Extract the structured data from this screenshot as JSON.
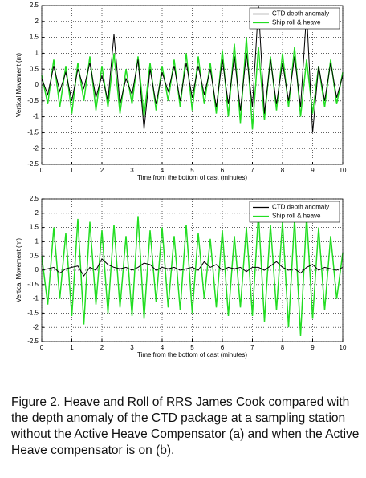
{
  "chart_data": [
    {
      "type": "line",
      "ylabel": "Vertical Movement (m)",
      "xlabel": "Time from the bottom of cast (minutes)",
      "xlim": [
        0,
        10
      ],
      "xticks": [
        0,
        1,
        2,
        3,
        4,
        5,
        6,
        7,
        8,
        9,
        10
      ],
      "ylim": [
        -2.5,
        2.5
      ],
      "yticks": [
        -2.5,
        -2,
        -1.5,
        -1,
        -0.5,
        0,
        0.5,
        1,
        1.5,
        2,
        2.5
      ],
      "grid": true,
      "legend": "upper right",
      "x": [
        0,
        0.2,
        0.4,
        0.6,
        0.8,
        1,
        1.2,
        1.4,
        1.6,
        1.8,
        2,
        2.2,
        2.4,
        2.6,
        2.8,
        3,
        3.2,
        3.4,
        3.6,
        3.8,
        4,
        4.2,
        4.4,
        4.6,
        4.8,
        5,
        5.2,
        5.4,
        5.6,
        5.8,
        6,
        6.2,
        6.4,
        6.6,
        6.8,
        7,
        7.2,
        7.4,
        7.6,
        7.8,
        8,
        8.2,
        8.4,
        8.6,
        8.8,
        9,
        9.2,
        9.4,
        9.6,
        9.8,
        10
      ],
      "series": [
        {
          "name": "CTD depth anomaly",
          "color": "#000000",
          "values": [
            0.2,
            -0.3,
            0.6,
            -0.2,
            0.4,
            -0.5,
            0.5,
            -0.1,
            0.7,
            -0.4,
            0.3,
            -0.5,
            1.6,
            -0.6,
            0.2,
            -0.3,
            0.8,
            -1.4,
            0.5,
            -0.6,
            0.4,
            -0.2,
            0.6,
            -0.5,
            0.7,
            -0.4,
            0.6,
            -0.3,
            0.5,
            -0.7,
            0.8,
            -0.6,
            0.9,
            -0.8,
            1.0,
            -0.7,
            2.5,
            -0.9,
            0.8,
            -0.6,
            0.7,
            -0.5,
            0.9,
            -0.7,
            2.3,
            -1.5,
            0.6,
            -0.5,
            0.7,
            -0.4,
            0.3
          ]
        },
        {
          "name": "Ship roll & heave",
          "color": "#22dd22",
          "values": [
            0.3,
            -0.6,
            0.8,
            -0.7,
            0.6,
            -0.9,
            0.7,
            -0.5,
            0.9,
            -0.8,
            0.6,
            -0.7,
            1.0,
            -0.9,
            0.5,
            -0.6,
            0.9,
            -1.0,
            0.7,
            -0.8,
            0.6,
            -0.5,
            0.8,
            -0.7,
            1.0,
            -0.8,
            0.9,
            -0.6,
            0.7,
            -0.9,
            1.1,
            -1.0,
            1.3,
            -1.2,
            1.5,
            -1.4,
            1.2,
            -1.1,
            0.9,
            -0.8,
            1.0,
            -0.7,
            1.2,
            -1.0,
            0.8,
            -0.9,
            0.6,
            -0.7,
            0.8,
            -0.6,
            0.4
          ]
        }
      ]
    },
    {
      "type": "line",
      "ylabel": "Vertical Movement (m)",
      "xlabel": "Time from the bottom of cast (minutes)",
      "xlim": [
        0,
        10
      ],
      "xticks": [
        0,
        1,
        2,
        3,
        4,
        5,
        6,
        7,
        8,
        9,
        10
      ],
      "ylim": [
        -2.5,
        2.5
      ],
      "yticks": [
        -2.5,
        -2,
        -1.5,
        -1,
        -0.5,
        0,
        0.5,
        1,
        1.5,
        2,
        2.5
      ],
      "grid": true,
      "legend": "upper right",
      "x": [
        0,
        0.2,
        0.4,
        0.6,
        0.8,
        1,
        1.2,
        1.4,
        1.6,
        1.8,
        2,
        2.2,
        2.4,
        2.6,
        2.8,
        3,
        3.2,
        3.4,
        3.6,
        3.8,
        4,
        4.2,
        4.4,
        4.6,
        4.8,
        5,
        5.2,
        5.4,
        5.6,
        5.8,
        6,
        6.2,
        6.4,
        6.6,
        6.8,
        7,
        7.2,
        7.4,
        7.6,
        7.8,
        8,
        8.2,
        8.4,
        8.6,
        8.8,
        9,
        9.2,
        9.4,
        9.6,
        9.8,
        10
      ],
      "series": [
        {
          "name": "CTD depth anomaly",
          "color": "#000000",
          "values": [
            0.0,
            0.05,
            0.1,
            -0.1,
            0.05,
            0.1,
            0.15,
            -0.2,
            0.1,
            0.0,
            0.4,
            0.2,
            0.1,
            0.05,
            0.1,
            0.0,
            0.1,
            0.25,
            0.2,
            0.0,
            0.1,
            0.05,
            0.1,
            0.0,
            0.05,
            0.1,
            0.0,
            0.3,
            0.1,
            0.2,
            0.0,
            0.1,
            0.05,
            0.1,
            -0.05,
            0.1,
            0.1,
            0.0,
            0.15,
            0.3,
            0.1,
            0.0,
            0.05,
            -0.1,
            0.1,
            0.2,
            0.0,
            0.1,
            0.05,
            0.0,
            0.1
          ]
        },
        {
          "name": "Ship roll & heave",
          "color": "#22dd22",
          "values": [
            0.5,
            -1.2,
            1.5,
            -1.0,
            1.3,
            -1.6,
            1.8,
            -1.9,
            1.7,
            -1.2,
            1.4,
            -1.5,
            1.6,
            -1.3,
            1.2,
            -1.6,
            1.9,
            -1.7,
            1.4,
            -1.1,
            1.5,
            -1.3,
            1.2,
            -1.4,
            1.6,
            -1.5,
            1.3,
            -1.0,
            1.1,
            -1.3,
            1.4,
            -1.6,
            1.2,
            -1.3,
            1.5,
            -1.6,
            2.0,
            -1.8,
            1.6,
            -1.4,
            1.7,
            -2.0,
            1.8,
            -2.3,
            1.9,
            -1.7,
            1.5,
            -1.4,
            1.2,
            -1.0,
            0.6
          ]
        }
      ]
    }
  ],
  "caption": "Figure 2. Heave and Roll of RRS James Cook compared with the depth anomaly of the CTD package at a sampling station without the Active Heave Compensator (a) and when the Active Heave compensator is on (b)."
}
